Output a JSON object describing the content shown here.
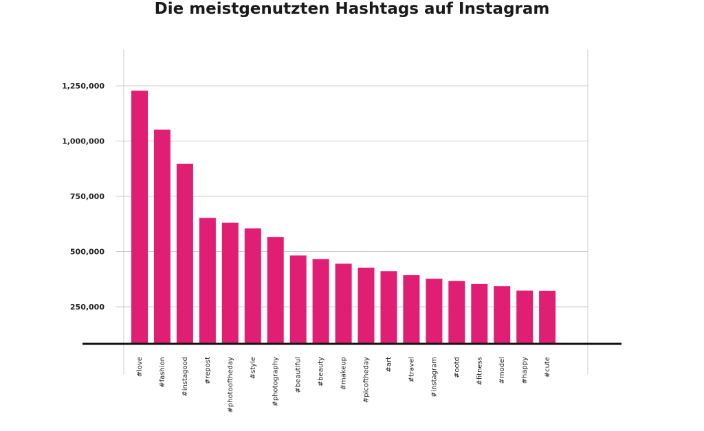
{
  "chart_data": {
    "type": "bar",
    "title": "Die meistgenutzten Hashtags auf Instagram",
    "xlabel": "",
    "ylabel": "",
    "categories": [
      "#love",
      "#fashion",
      "#instagood",
      "#repost",
      "#photooftheday",
      "#style",
      "#photography",
      "#beautiful",
      "#beauty",
      "#makeup",
      "#picoftheday",
      "#art",
      "#travel",
      "#instagram",
      "#ootd",
      "#fitness",
      "#model",
      "#happy",
      "#cute"
    ],
    "values": [
      1228000,
      1052000,
      897000,
      652000,
      630000,
      605000,
      566000,
      482000,
      466000,
      445000,
      427000,
      411000,
      393000,
      377000,
      367000,
      353000,
      343000,
      323000,
      322000
    ],
    "ylim": [
      85000,
      1420000
    ],
    "yticks": [
      250000,
      500000,
      750000,
      1000000,
      1250000
    ],
    "ytick_labels": [
      "250,000",
      "500,000",
      "750,000",
      "1,000,000",
      "1,250,000"
    ],
    "grid": true,
    "legend": "none",
    "colors": {
      "bar": "#e01e74",
      "grid": "#cccccc",
      "baseline": "#111111",
      "text": "#222222"
    }
  }
}
